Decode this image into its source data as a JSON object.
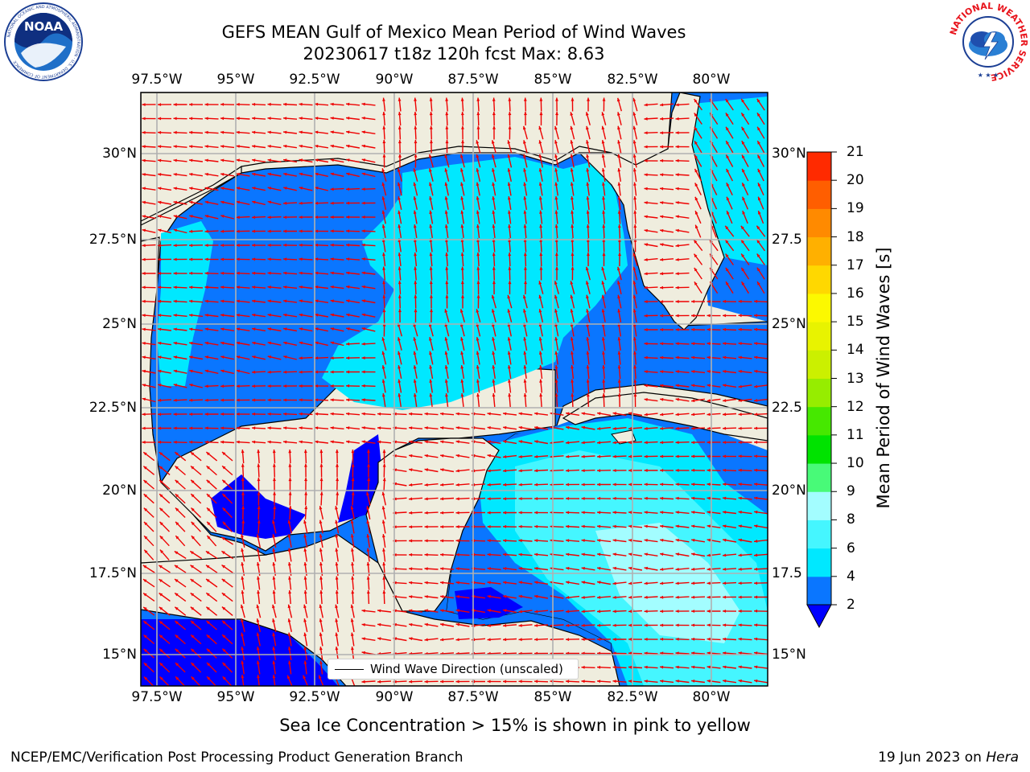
{
  "title": {
    "line1": "GEFS MEAN Gulf of Mexico Mean Period of Wind Waves",
    "line2": "20230617 t18z 120h fcst   Max: 8.63"
  },
  "logos": {
    "left": {
      "name": "NOAA",
      "ring_text": "NATIONAL OCEANIC AND ATMOSPHERIC ADMINISTRATION · U.S. DEPARTMENT OF COMMERCE"
    },
    "right": {
      "ring_text": "NATIONAL WEATHER SERVICE"
    }
  },
  "map": {
    "lon_ticks": [
      "97.5°W",
      "95°W",
      "92.5°W",
      "90°W",
      "87.5°W",
      "85°W",
      "82.5°W",
      "80°W"
    ],
    "lat_ticks_left": [
      "30°N",
      "27.5°N",
      "25°N",
      "22.5°N",
      "20°N",
      "17.5°N",
      "15°N"
    ],
    "lat_ticks_right": [
      "30°N",
      "27.5",
      "25°N",
      "22.5",
      "20°N",
      "17.5",
      "15°N"
    ],
    "lon_range": [
      -98,
      -78.3
    ],
    "lat_range": [
      14,
      31.7
    ],
    "grid": true,
    "legend": {
      "label": "Wind Wave Direction (unscaled)",
      "position": "lower-center"
    },
    "colors": {
      "land": "#efedde",
      "arrow": "#ee0000",
      "grid": "#b0b0b0"
    }
  },
  "colorbar": {
    "label": "Mean Period of Wind Waves [s]",
    "ticks": [
      "2",
      "4",
      "6",
      "8",
      "9",
      "10",
      "11",
      "12",
      "13",
      "14",
      "15",
      "16",
      "17",
      "18",
      "19",
      "20",
      "21"
    ],
    "colors": [
      "#0a76ff",
      "#00e8ff",
      "#45f6ff",
      "#a3fdff",
      "#48fa78",
      "#00e300",
      "#46e800",
      "#96ed00",
      "#cbf000",
      "#e8f300",
      "#fcf900",
      "#ffd800",
      "#ffb000",
      "#ff8a00",
      "#ff5e00",
      "#ff2a00"
    ],
    "extend_color": "#0000ff"
  },
  "footnote": "Sea Ice Concentration > 15% is shown in pink to yellow",
  "credit": "NCEP/EMC/Verification Post Processing Product Generation Branch",
  "stamp": {
    "date": "19 Jun 2023 on ",
    "host": "Hera"
  }
}
